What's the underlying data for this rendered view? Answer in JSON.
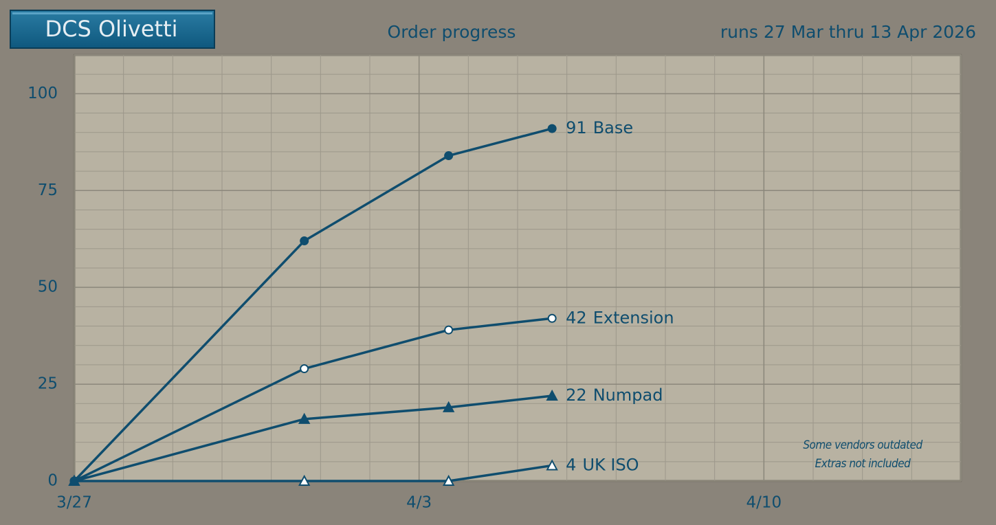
{
  "header": {
    "badge": "DCS Olivetti"
  },
  "chart_data": {
    "type": "line",
    "title": "Order progress",
    "subtitle": "runs 27 Mar thru 13 Apr 2026",
    "xlim": [
      0,
      18
    ],
    "xticks": [
      {
        "value": 0,
        "label": "3/27"
      },
      {
        "value": 7,
        "label": "4/3"
      },
      {
        "value": 14,
        "label": "4/10"
      }
    ],
    "x_minor_step": 1,
    "ylim": [
      0,
      110
    ],
    "yticks": [
      0,
      25,
      50,
      75,
      100
    ],
    "y_minor_step": 5,
    "grid": true,
    "x": [
      0,
      4.67,
      7.6,
      9.7
    ],
    "series": [
      {
        "name": "Base",
        "color": "#0f4d6e",
        "marker": "circle",
        "filled": true,
        "values": [
          0,
          62,
          84,
          91
        ]
      },
      {
        "name": "Extension",
        "color": "#0f4d6e",
        "marker": "circle",
        "filled": false,
        "values": [
          0,
          29,
          39,
          42
        ]
      },
      {
        "name": "Numpad",
        "color": "#0f4d6e",
        "marker": "triangle",
        "filled": true,
        "values": [
          0,
          16,
          19,
          22
        ]
      },
      {
        "name": "UK ISO",
        "color": "#0f4d6e",
        "marker": "triangle",
        "filled": false,
        "values": [
          0,
          0,
          0,
          4
        ]
      }
    ],
    "annotations": [
      "Some vendors outdated",
      "Extras not included"
    ]
  }
}
